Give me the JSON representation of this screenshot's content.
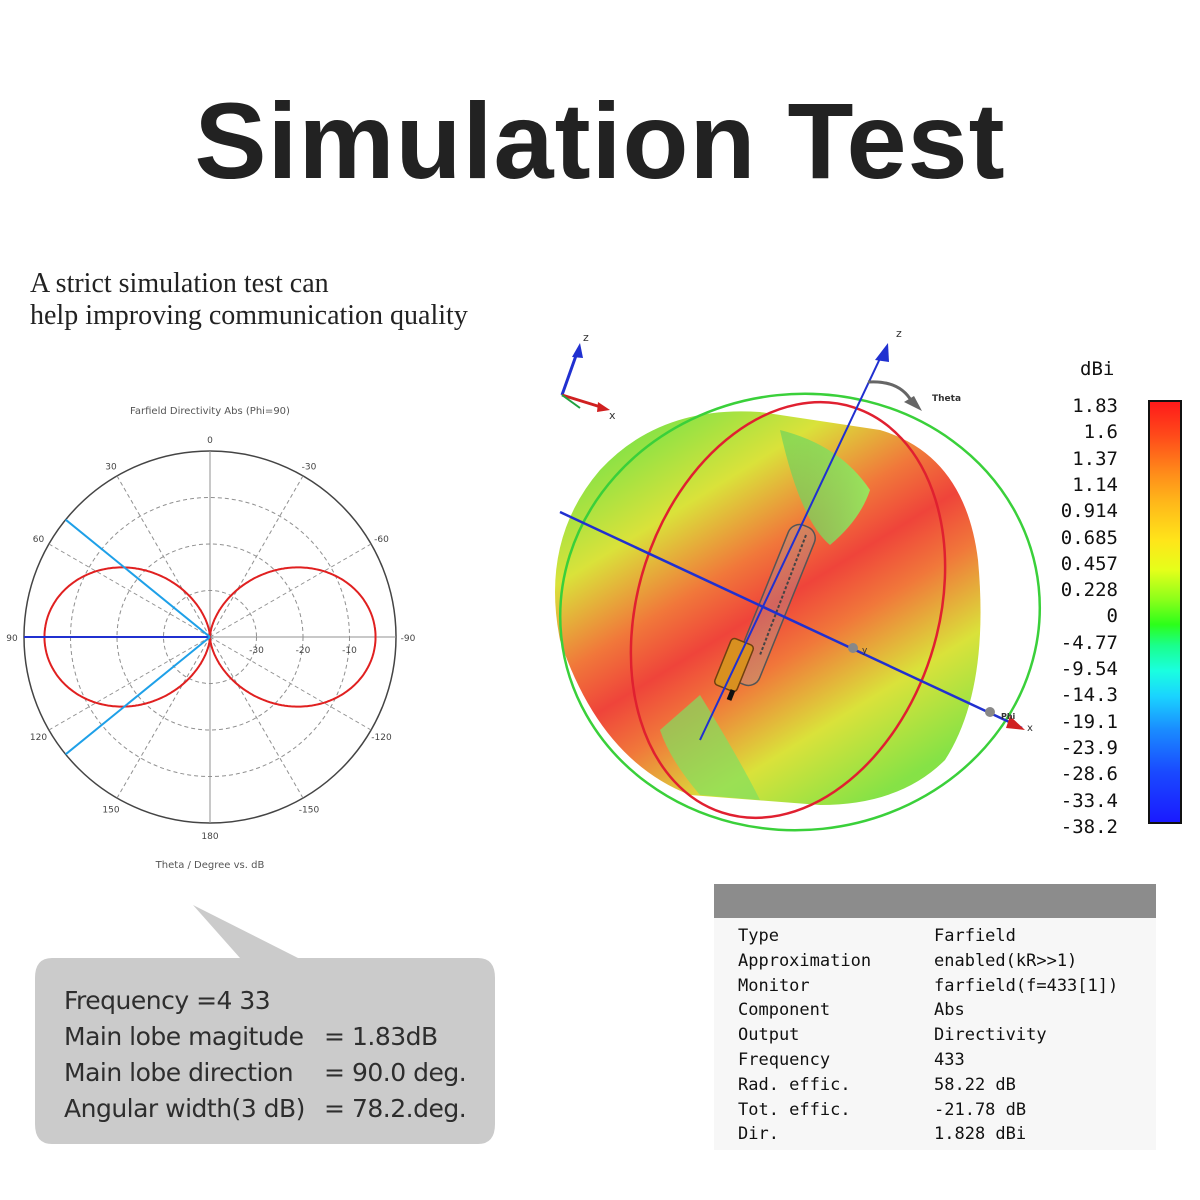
{
  "title": "Simulation Test",
  "tagline": [
    "A strict simulation test can",
    "help improving communication quality"
  ],
  "polar": {
    "title": "Farfield Directivity Abs (Phi=90)",
    "angle_labels": [
      "0",
      "30",
      "-30",
      "60",
      "-60",
      "90",
      "-90",
      "120",
      "-120",
      "150",
      "-150",
      "180"
    ],
    "radial_labels": [
      "-30",
      "-20",
      "-10"
    ],
    "caption": "Theta / Degree vs. dB",
    "colors": {
      "pattern": "#e02020",
      "main_lobe": "#2030d0",
      "beamwidth": "#1ea0e8",
      "grid": "#909090"
    }
  },
  "bubble": {
    "rows": [
      {
        "key": "Frequency =4 33",
        "eq": "",
        "value": ""
      },
      {
        "key": "Main lobe magitude",
        "eq": "=",
        "value": "1.83dB"
      },
      {
        "key": "Main lobe direction",
        "eq": "=",
        "value": "90.0 deg."
      },
      {
        "key": "Angular width(3 dB)",
        "eq": "=",
        "value": "78.2.deg."
      }
    ],
    "color": "#cbcbcb"
  },
  "pattern3d": {
    "axis_labels": {
      "z_small": "z",
      "x_small": "x",
      "z": "z",
      "theta": "Theta",
      "y": "y",
      "phi": "Phi",
      "x": "x"
    }
  },
  "colorbar": {
    "unit": "dBi",
    "labels": [
      "1.83",
      "1.6",
      "1.37",
      "1.14",
      "0.914",
      "0.685",
      "0.457",
      "0.228",
      "0",
      "-4.77",
      "-9.54",
      "-14.3",
      "-19.1",
      "-23.9",
      "-28.6",
      "-33.4",
      "-38.2"
    ]
  },
  "results_table": {
    "rows": [
      {
        "label": "Type",
        "value": "Farfield"
      },
      {
        "label": "Approximation",
        "value": "enabled(kR>>1)"
      },
      {
        "label": "Monitor",
        "value": "farfield(f=433[1])"
      },
      {
        "label": "Component",
        "value": "Abs"
      },
      {
        "label": "Output",
        "value": "Directivity"
      },
      {
        "label": "Frequency",
        "value": "433"
      },
      {
        "label": "Rad. effic.",
        "value": "58.22 dB"
      },
      {
        "label": "Tot. effic.",
        "value": "-21.78 dB"
      },
      {
        "label": "Dir.",
        "value": "1.828 dBi"
      }
    ]
  }
}
